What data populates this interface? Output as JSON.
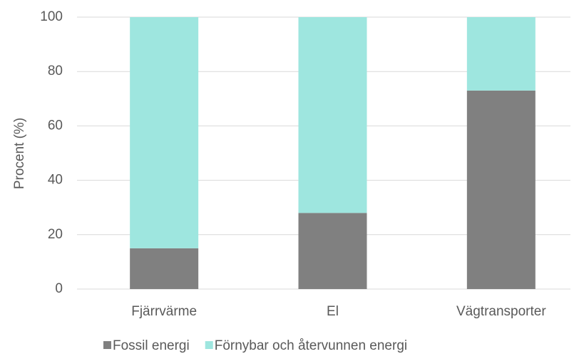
{
  "chart_data": {
    "type": "stacked_bar",
    "categories": [
      "Fjärrvärme",
      "El",
      "Vägtransporter"
    ],
    "series": [
      {
        "name": "Fossil energi",
        "color": "#808080",
        "values": [
          15,
          28,
          73
        ]
      },
      {
        "name": "Förnybar och återvunnen energi",
        "color": "#9ee6df",
        "values": [
          85,
          72,
          27
        ]
      }
    ],
    "y_label": "Procent (%)",
    "ylim": [
      0,
      100
    ],
    "yticks": [
      0,
      20,
      40,
      60,
      80,
      100
    ],
    "grid": true,
    "legend": "bottom"
  }
}
